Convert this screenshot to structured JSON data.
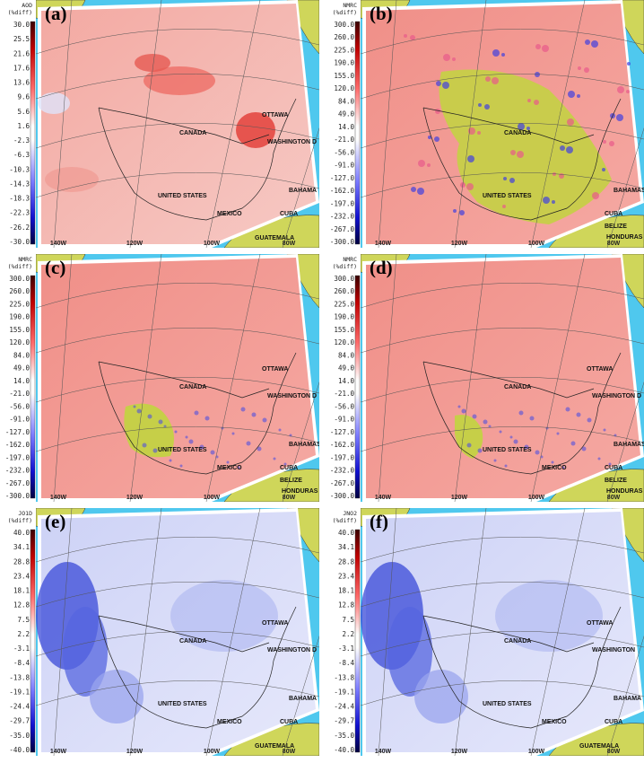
{
  "panels": [
    {
      "label": "(a)",
      "cbar_title": [
        "AOD",
        "(%diff)"
      ],
      "ticks": [
        "30.0",
        "25.5",
        "21.6",
        "17.6",
        "13.6",
        "9.6",
        "5.6",
        "1.6",
        "-2.3",
        "-6.3",
        "-10.3",
        "-14.3",
        "-18.3",
        "-22.3",
        "-26.2",
        "-30.0"
      ],
      "places": [
        "OTTAWA",
        "CANADA",
        "WASHINGTON D",
        "UNITED STATES",
        "BAHAMA",
        "CUBA",
        "MEXICO",
        "GUATEMALA"
      ],
      "lons": [
        "140W",
        "120W",
        "100W",
        "80W"
      ]
    },
    {
      "label": "(b)",
      "cbar_title": [
        "NMRC",
        "(%diff)"
      ],
      "ticks": [
        "300.0",
        "260.0",
        "225.0",
        "190.0",
        "155.0",
        "120.0",
        "84.0",
        "49.0",
        "14.0",
        "-21.0",
        "-56.0",
        "-91.0",
        "-127.0",
        "-162.0",
        "-197.0",
        "-232.0",
        "-267.0",
        "-300.0"
      ],
      "places": [
        "CANADA",
        "UNITED STATES",
        "BAHAMAS",
        "CUBA",
        "BELIZE",
        "HONDURAS"
      ],
      "lons": [
        "140W",
        "120W",
        "100W",
        "80W"
      ]
    },
    {
      "label": "(c)",
      "cbar_title": [
        "NMRC",
        "(%diff)"
      ],
      "ticks": [
        "300.0",
        "260.0",
        "225.0",
        "190.0",
        "155.0",
        "120.0",
        "84.0",
        "49.0",
        "14.0",
        "-21.0",
        "-56.0",
        "-91.0",
        "-127.0",
        "-162.0",
        "-197.0",
        "-232.0",
        "-267.0",
        "-300.0"
      ],
      "places": [
        "OTTAWA",
        "CANADA",
        "WASHINGTON D",
        "UNITED STATES",
        "BAHAMAS",
        "CUBA",
        "MEXICO",
        "BELIZE",
        "HONDURAS"
      ],
      "lons": [
        "140W",
        "120W",
        "100W",
        "80W"
      ]
    },
    {
      "label": "(d)",
      "cbar_title": [
        "NMRC",
        "(%diff)"
      ],
      "ticks": [
        "300.0",
        "260.0",
        "225.0",
        "190.0",
        "155.0",
        "120.0",
        "84.0",
        "49.0",
        "14.0",
        "-21.0",
        "-56.0",
        "-91.0",
        "-127.0",
        "-162.0",
        "-197.0",
        "-232.0",
        "-267.0",
        "-300.0"
      ],
      "places": [
        "OTTAWA",
        "CANADA",
        "WASHINGTON D",
        "UNITED STATES",
        "BAHAMAS",
        "CUBA",
        "MEXICO",
        "BELIZE",
        "HONDURAS"
      ],
      "lons": [
        "140W",
        "120W",
        "100W",
        "80W"
      ]
    },
    {
      "label": "(e)",
      "cbar_title": [
        "JO1D",
        "(%diff)"
      ],
      "ticks": [
        "40.0",
        "34.1",
        "28.8",
        "23.4",
        "18.1",
        "12.8",
        "7.5",
        "2.2",
        "-3.1",
        "-8.4",
        "-13.8",
        "-19.1",
        "-24.4",
        "-29.7",
        "-35.0",
        "-40.0"
      ],
      "places": [
        "OTTAWA",
        "CANADA",
        "WASHINGTON D",
        "UNITED STATES",
        "BAHAMA",
        "CUBA",
        "MEXICO",
        "GUATEMALA"
      ],
      "lons": [
        "140W",
        "120W",
        "100W",
        "80W"
      ]
    },
    {
      "label": "(f)",
      "cbar_title": [
        "JNO2",
        "(%diff)"
      ],
      "ticks": [
        "40.0",
        "34.1",
        "28.8",
        "23.4",
        "18.1",
        "12.8",
        "7.5",
        "2.2",
        "-3.1",
        "-8.4",
        "-13.8",
        "-19.1",
        "-24.4",
        "-29.7",
        "-35.0",
        "-40.0"
      ],
      "places": [
        "OTTAWA",
        "CANADA",
        "WASHINGTON",
        "UNITED STATES",
        "BAHAMA",
        "CUBA",
        "MEXICO",
        "GUATEMALA"
      ],
      "lons": [
        "140W",
        "120W",
        "100W",
        "80W"
      ]
    }
  ]
}
